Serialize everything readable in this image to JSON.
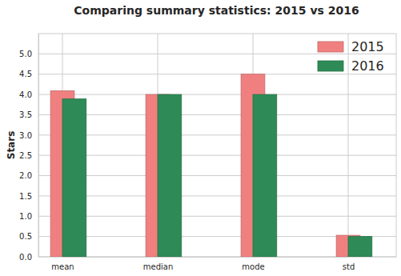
{
  "chart_data": {
    "type": "bar",
    "title": "Comparing summary statistics: 2015 vs 2016",
    "y_label": "Stars",
    "categories": [
      "mean",
      "median",
      "mode",
      "std"
    ],
    "series": [
      {
        "name": "2015",
        "color": "#f08080",
        "values": [
          4.09,
          4.0,
          4.5,
          0.53
        ]
      },
      {
        "name": "2016",
        "color": "#2e8b57",
        "values": [
          3.89,
          4.0,
          4.0,
          0.5
        ]
      }
    ],
    "ylim": [
      0,
      5.5
    ],
    "yticks": [
      {
        "value": 0,
        "label": "0.0"
      },
      0.5,
      {
        "value": 1,
        "label": "1.0"
      },
      1.5,
      {
        "value": 2,
        "label": "2.0"
      },
      2.5,
      {
        "value": 3,
        "label": "3.0"
      },
      3.5,
      {
        "value": 4,
        "label": "4.0"
      },
      4.5,
      {
        "value": 5,
        "label": "5.0"
      }
    ],
    "grid": true,
    "legend": "upper right"
  }
}
